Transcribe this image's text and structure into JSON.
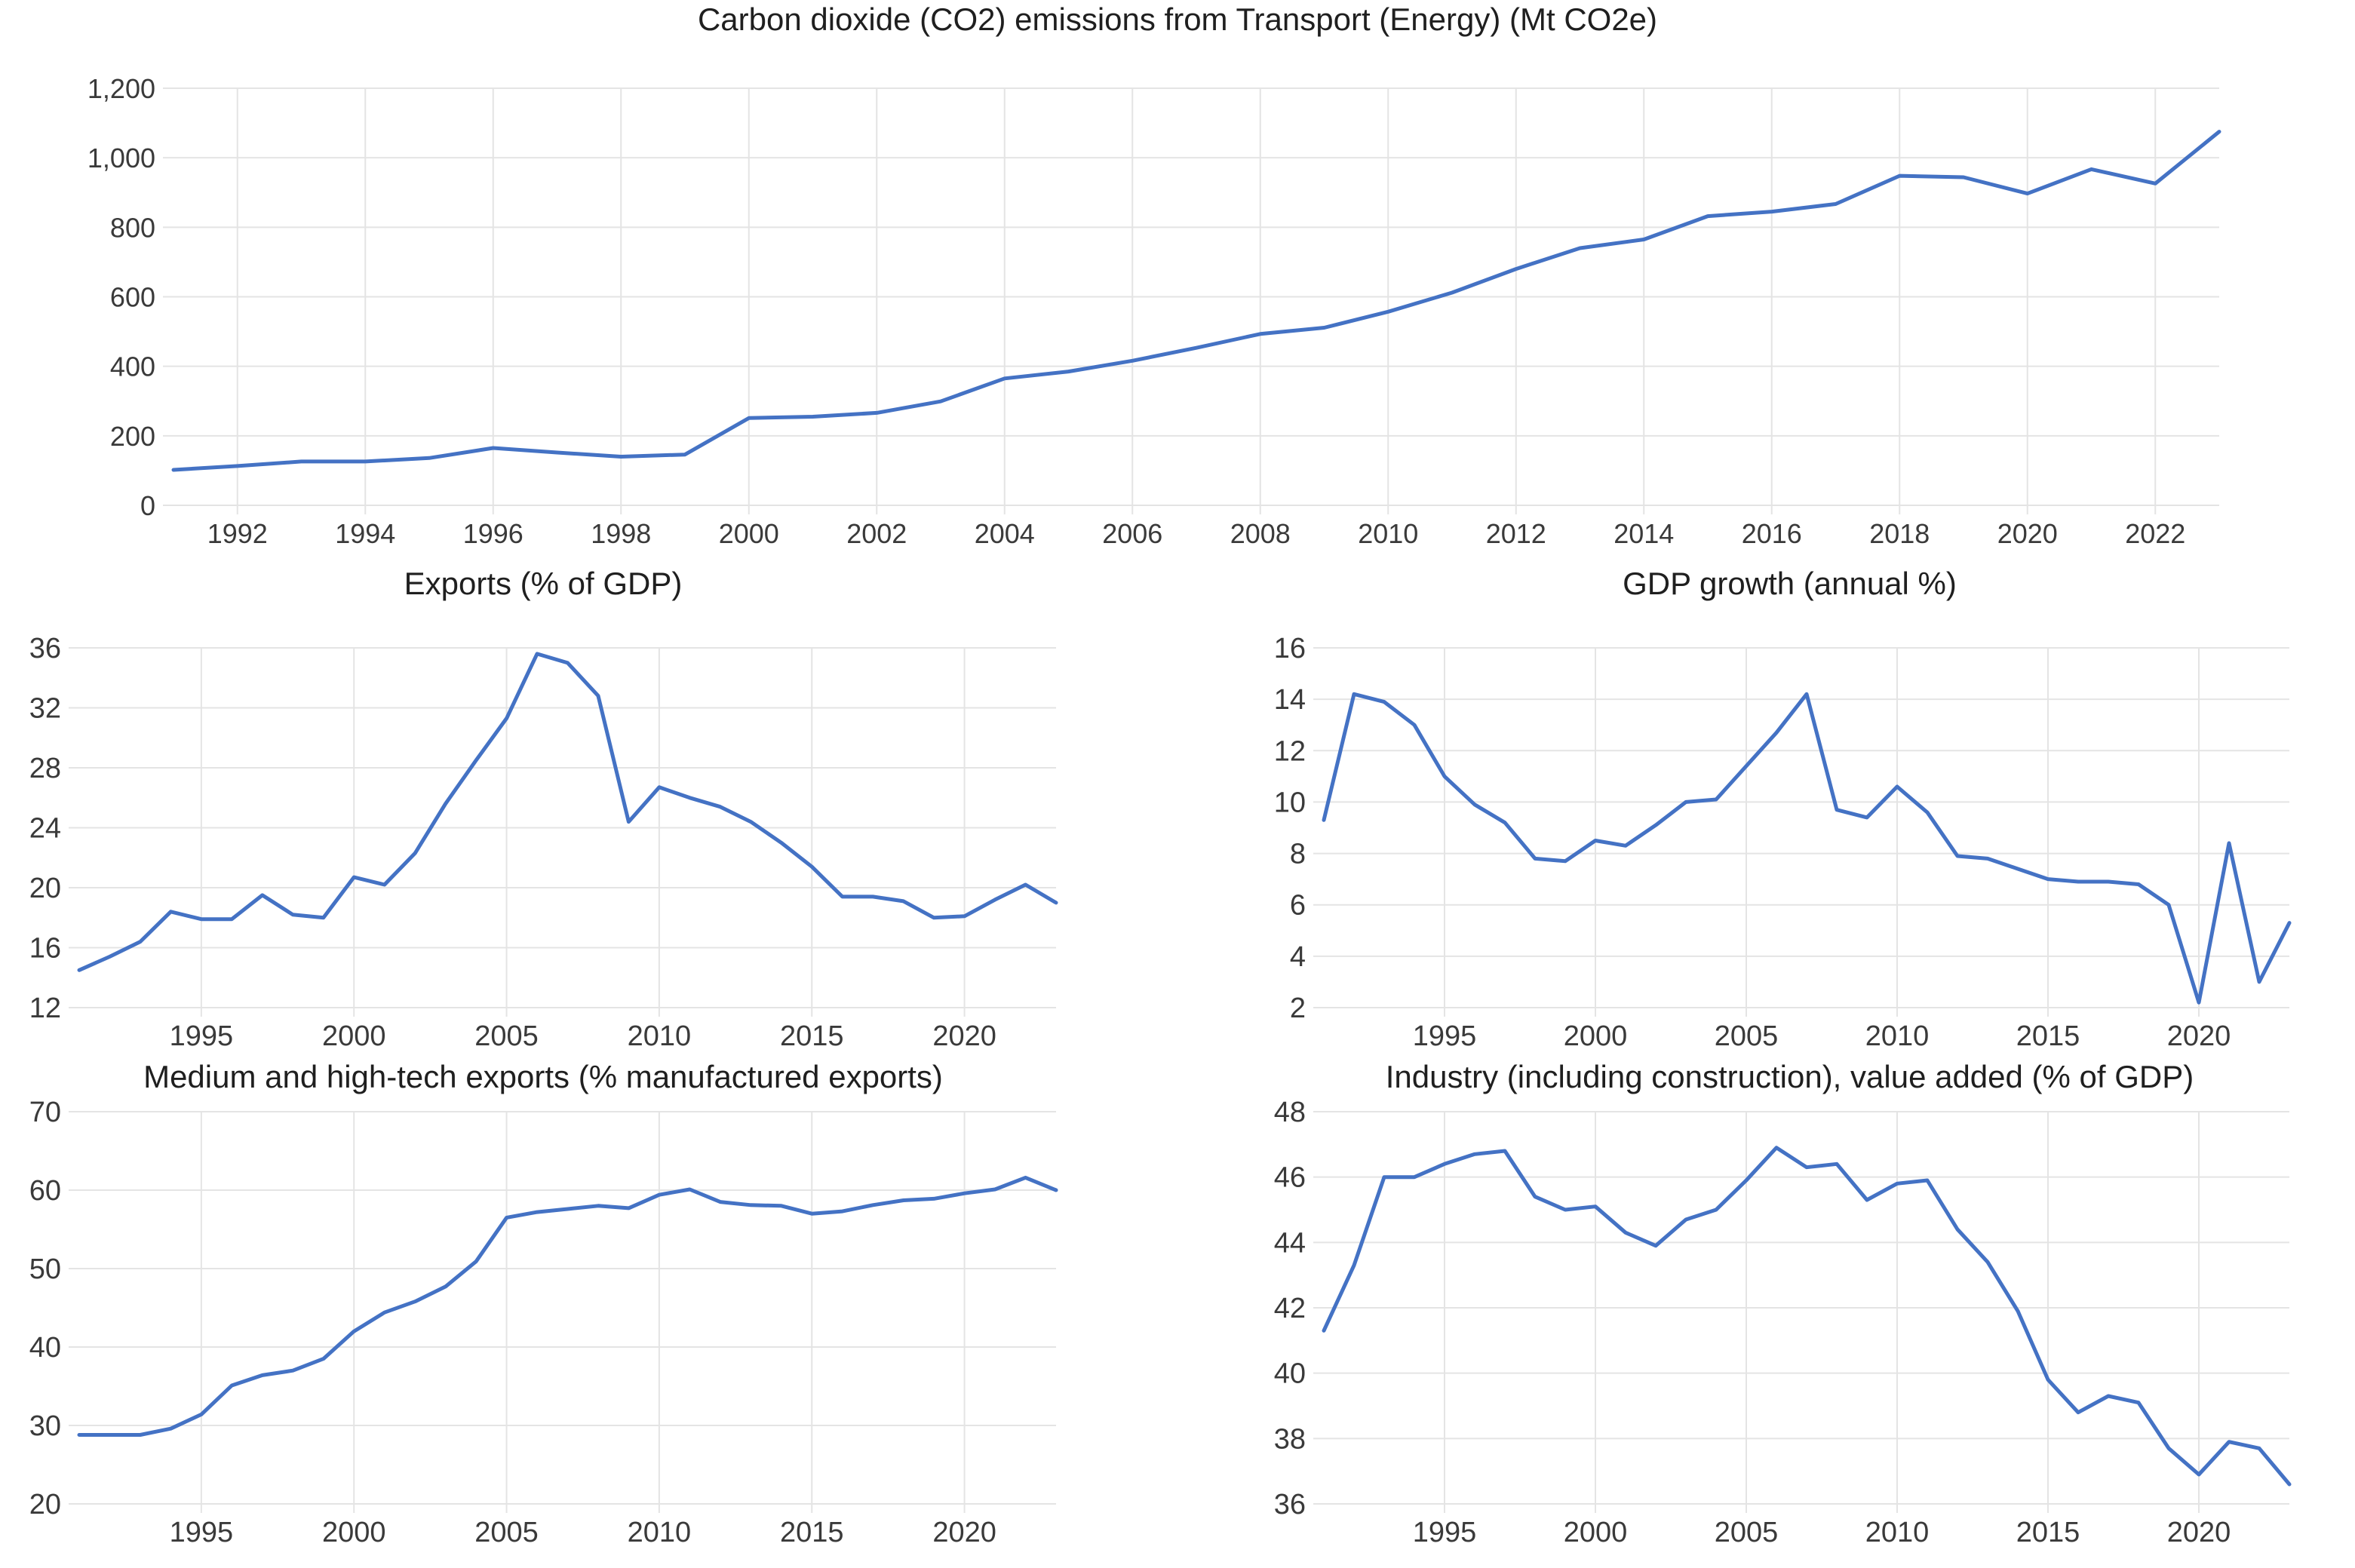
{
  "page": {
    "background": "#ffffff",
    "accent_line_color": "#4472C4",
    "grid_color": "#E4E4E4",
    "text_color": "#3a3a3a"
  },
  "chart_data": [
    {
      "type": "line",
      "title": "Carbon dioxide (CO2) emissions from Transport (Energy) (Mt CO2e)",
      "legend_position": "none",
      "grid": true,
      "line_color": "#4472C4",
      "grid_color": "#E4E4E4",
      "x": [
        1991,
        1992,
        1993,
        1994,
        1995,
        1996,
        1997,
        1998,
        1999,
        2000,
        2001,
        2002,
        2003,
        2004,
        2005,
        2006,
        2007,
        2008,
        2009,
        2010,
        2011,
        2012,
        2013,
        2014,
        2015,
        2016,
        2017,
        2018,
        2019,
        2020,
        2021,
        2022,
        2023
      ],
      "values": [
        102,
        113,
        126,
        126,
        136,
        165,
        152,
        140,
        146,
        251,
        255,
        266,
        299,
        365,
        385,
        416,
        453,
        493,
        511,
        557,
        612,
        680,
        740,
        765,
        832,
        845,
        867,
        948,
        944,
        897,
        967,
        926,
        1075
      ],
      "ylim": [
        0,
        1200
      ],
      "yticks": [
        0,
        200,
        400,
        600,
        800,
        1000,
        1200
      ],
      "ytick_labels": [
        "0",
        "200",
        "400",
        "600",
        "800",
        "1,000",
        "1,200"
      ],
      "xticks": [
        1992,
        1994,
        1996,
        1998,
        2000,
        2002,
        2004,
        2006,
        2008,
        2010,
        2012,
        2014,
        2016,
        2018,
        2020,
        2022
      ],
      "xtick_labels": [
        "1992",
        "1994",
        "1996",
        "1998",
        "2000",
        "2002",
        "2004",
        "2006",
        "2008",
        "2010",
        "2012",
        "2014",
        "2016",
        "2018",
        "2020",
        "2022"
      ]
    },
    {
      "type": "line",
      "title": "Exports (% of GDP)",
      "legend_position": "none",
      "grid": true,
      "line_color": "#4472C4",
      "grid_color": "#E4E4E4",
      "x": [
        1991,
        1992,
        1993,
        1994,
        1995,
        1996,
        1997,
        1998,
        1999,
        2000,
        2001,
        2002,
        2003,
        2004,
        2005,
        2006,
        2007,
        2008,
        2009,
        2010,
        2011,
        2012,
        2013,
        2014,
        2015,
        2016,
        2017,
        2018,
        2019,
        2020,
        2021,
        2022,
        2023
      ],
      "values": [
        14.5,
        15.4,
        16.4,
        18.4,
        17.9,
        17.9,
        19.5,
        18.2,
        18.0,
        20.7,
        20.2,
        22.3,
        25.6,
        28.5,
        31.3,
        35.6,
        35.0,
        32.8,
        24.4,
        26.7,
        26.0,
        25.4,
        24.4,
        23.0,
        21.4,
        19.4,
        19.4,
        19.1,
        18.0,
        18.1,
        19.2,
        20.2,
        19.0
      ],
      "ylim": [
        12,
        36
      ],
      "yticks": [
        12,
        16,
        20,
        24,
        28,
        32,
        36
      ],
      "ytick_labels": [
        "12",
        "16",
        "20",
        "24",
        "28",
        "32",
        "36"
      ],
      "xticks": [
        1995,
        2000,
        2005,
        2010,
        2015,
        2020
      ],
      "xtick_labels": [
        "1995",
        "2000",
        "2005",
        "2010",
        "2015",
        "2020"
      ]
    },
    {
      "type": "line",
      "title": "GDP growth (annual %)",
      "legend_position": "none",
      "grid": true,
      "line_color": "#4472C4",
      "grid_color": "#E4E4E4",
      "x": [
        1991,
        1992,
        1993,
        1994,
        1995,
        1996,
        1997,
        1998,
        1999,
        2000,
        2001,
        2002,
        2003,
        2004,
        2005,
        2006,
        2007,
        2008,
        2009,
        2010,
        2011,
        2012,
        2013,
        2014,
        2015,
        2016,
        2017,
        2018,
        2019,
        2020,
        2021,
        2022,
        2023
      ],
      "values": [
        9.3,
        14.2,
        13.9,
        13.0,
        11.0,
        9.9,
        9.2,
        7.8,
        7.7,
        8.5,
        8.3,
        9.1,
        10.0,
        10.1,
        11.4,
        12.7,
        14.2,
        9.7,
        9.4,
        10.6,
        9.6,
        7.9,
        7.8,
        7.4,
        7.0,
        6.9,
        6.9,
        6.8,
        6.0,
        2.2,
        8.4,
        3.0,
        5.3
      ],
      "ylim": [
        2,
        16
      ],
      "yticks": [
        2,
        4,
        6,
        8,
        10,
        12,
        14,
        16
      ],
      "ytick_labels": [
        "2",
        "4",
        "6",
        "8",
        "10",
        "12",
        "14",
        "16"
      ],
      "xticks": [
        1995,
        2000,
        2005,
        2010,
        2015,
        2020
      ],
      "xtick_labels": [
        "1995",
        "2000",
        "2005",
        "2010",
        "2015",
        "2020"
      ]
    },
    {
      "type": "line",
      "title": "Medium and high-tech exports (% manufactured exports)",
      "legend_position": "none",
      "grid": true,
      "line_color": "#4472C4",
      "grid_color": "#E4E4E4",
      "x": [
        1991,
        1992,
        1993,
        1994,
        1995,
        1996,
        1997,
        1998,
        1999,
        2000,
        2001,
        2002,
        2003,
        2004,
        2005,
        2006,
        2007,
        2008,
        2009,
        2010,
        2011,
        2012,
        2013,
        2014,
        2015,
        2016,
        2017,
        2018,
        2019,
        2020,
        2021,
        2022,
        2023
      ],
      "values": [
        28.8,
        28.8,
        28.8,
        29.6,
        31.4,
        35.1,
        36.4,
        37.0,
        38.5,
        42.0,
        44.4,
        45.8,
        47.7,
        50.9,
        56.5,
        57.2,
        57.6,
        58.0,
        57.7,
        59.4,
        60.1,
        58.5,
        58.1,
        58.0,
        57.0,
        57.3,
        58.1,
        58.7,
        58.9,
        59.6,
        60.1,
        61.6,
        60.0
      ],
      "ylim": [
        20,
        70
      ],
      "yticks": [
        20,
        30,
        40,
        50,
        60,
        70
      ],
      "ytick_labels": [
        "20",
        "30",
        "40",
        "50",
        "60",
        "70"
      ],
      "xticks": [
        1995,
        2000,
        2005,
        2010,
        2015,
        2020
      ],
      "xtick_labels": [
        "1995",
        "2000",
        "2005",
        "2010",
        "2015",
        "2020"
      ]
    },
    {
      "type": "line",
      "title": "Industry (including construction), value added (% of GDP)",
      "legend_position": "none",
      "grid": true,
      "line_color": "#4472C4",
      "grid_color": "#E4E4E4",
      "x": [
        1991,
        1992,
        1993,
        1994,
        1995,
        1996,
        1997,
        1998,
        1999,
        2000,
        2001,
        2002,
        2003,
        2004,
        2005,
        2006,
        2007,
        2008,
        2009,
        2010,
        2011,
        2012,
        2013,
        2014,
        2015,
        2016,
        2017,
        2018,
        2019,
        2020,
        2021,
        2022,
        2023
      ],
      "values": [
        41.3,
        43.3,
        46.0,
        46.0,
        46.4,
        46.7,
        46.8,
        45.4,
        45.0,
        45.1,
        44.3,
        43.9,
        44.7,
        45.0,
        45.9,
        46.9,
        46.3,
        46.4,
        45.3,
        45.8,
        45.9,
        44.4,
        43.4,
        41.9,
        39.8,
        38.8,
        39.3,
        39.1,
        37.7,
        36.9,
        37.9,
        37.7,
        36.6
      ],
      "ylim": [
        36,
        48
      ],
      "yticks": [
        36,
        38,
        40,
        42,
        44,
        46,
        48
      ],
      "ytick_labels": [
        "36",
        "38",
        "40",
        "42",
        "44",
        "46",
        "48"
      ],
      "xticks": [
        1995,
        2000,
        2005,
        2010,
        2015,
        2020
      ],
      "xtick_labels": [
        "1995",
        "2000",
        "2005",
        "2010",
        "2015",
        "2020"
      ]
    }
  ]
}
